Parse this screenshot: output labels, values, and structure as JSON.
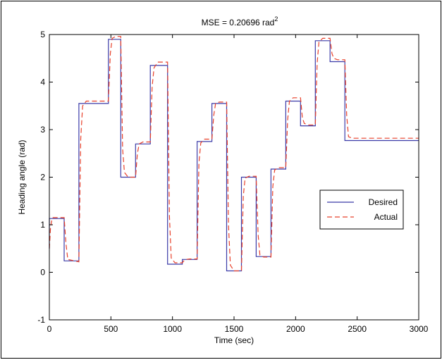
{
  "chart_data": {
    "type": "line",
    "title_prefix": "MSE = 0.20696 rad",
    "title_superscript": "2",
    "xlabel": "Time (sec)",
    "ylabel": "Heading angle (rad)",
    "xlim": [
      0,
      3000
    ],
    "ylim": [
      -1,
      5
    ],
    "xticks": [
      0,
      500,
      1000,
      1500,
      2000,
      2500,
      3000
    ],
    "yticks": [
      -1,
      0,
      1,
      2,
      3,
      4,
      5
    ],
    "grid": false,
    "legend_position": "right",
    "series": [
      {
        "name": "Desired",
        "color": "#3b3ba8",
        "style": "solid",
        "x": [
          0,
          0,
          120,
          120,
          240,
          240,
          480,
          480,
          580,
          580,
          700,
          700,
          820,
          820,
          960,
          960,
          1080,
          1080,
          1200,
          1200,
          1320,
          1320,
          1440,
          1440,
          1560,
          1560,
          1680,
          1680,
          1800,
          1800,
          1920,
          1920,
          2040,
          2040,
          2160,
          2160,
          2280,
          2280,
          2400,
          2400,
          3000
        ],
        "y": [
          0.5,
          1.13,
          1.13,
          0.24,
          0.24,
          3.55,
          3.55,
          4.9,
          4.9,
          2.0,
          2.0,
          2.7,
          2.7,
          4.35,
          4.35,
          0.17,
          0.17,
          0.27,
          0.27,
          2.75,
          2.75,
          3.55,
          3.55,
          0.03,
          0.03,
          2.0,
          2.0,
          0.33,
          0.33,
          2.17,
          2.17,
          3.6,
          3.6,
          3.08,
          3.08,
          4.87,
          4.87,
          4.43,
          4.43,
          2.77,
          2.77
        ]
      },
      {
        "name": "Actual",
        "color": "#e8402a",
        "style": "dashed",
        "x": [
          0,
          10,
          20,
          30,
          120,
          135,
          150,
          240,
          255,
          270,
          300,
          480,
          495,
          510,
          540,
          580,
          595,
          610,
          640,
          700,
          715,
          730,
          760,
          820,
          835,
          850,
          880,
          960,
          975,
          990,
          1020,
          1080,
          1095,
          1110,
          1140,
          1200,
          1215,
          1230,
          1260,
          1320,
          1335,
          1350,
          1380,
          1440,
          1455,
          1470,
          1500,
          1560,
          1575,
          1590,
          1620,
          1680,
          1695,
          1710,
          1740,
          1800,
          1815,
          1830,
          1860,
          1920,
          1935,
          1950,
          1980,
          2040,
          2055,
          2070,
          2100,
          2160,
          2175,
          2190,
          2220,
          2280,
          2295,
          2310,
          2340,
          2400,
          2415,
          2430,
          2460,
          3000
        ],
        "y": [
          0.5,
          0.95,
          1.1,
          1.15,
          1.15,
          0.6,
          0.27,
          0.22,
          2.8,
          3.5,
          3.6,
          3.6,
          4.6,
          4.92,
          4.96,
          4.96,
          2.6,
          2.1,
          2.0,
          2.0,
          2.5,
          2.7,
          2.74,
          2.74,
          3.9,
          4.3,
          4.42,
          4.42,
          1.2,
          0.3,
          0.2,
          0.2,
          0.25,
          0.27,
          0.28,
          0.28,
          2.3,
          2.72,
          2.8,
          2.8,
          3.3,
          3.55,
          3.58,
          3.58,
          1.0,
          0.15,
          0.03,
          0.03,
          1.6,
          1.98,
          2.02,
          2.02,
          0.8,
          0.36,
          0.32,
          0.32,
          1.8,
          2.15,
          2.2,
          2.2,
          3.2,
          3.6,
          3.67,
          3.67,
          3.25,
          3.13,
          3.1,
          3.1,
          4.4,
          4.85,
          4.92,
          4.92,
          4.6,
          4.5,
          4.47,
          4.47,
          3.3,
          2.85,
          2.82,
          2.82
        ]
      }
    ]
  }
}
